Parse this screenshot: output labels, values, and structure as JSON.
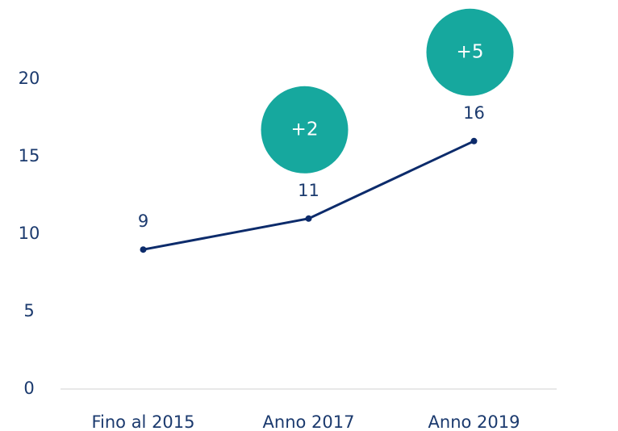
{
  "chart_data": {
    "type": "line",
    "categories": [
      "Fino al 2015",
      "Anno 2017",
      "Anno 2019"
    ],
    "values": [
      9,
      11,
      16
    ],
    "color": "#0c2b6b",
    "ylim": [
      0,
      20
    ],
    "yticks": [
      0,
      5,
      10,
      15,
      20
    ],
    "grid": false,
    "annotations": [
      {
        "text": "+2",
        "category": 1,
        "color": "#16a89e"
      },
      {
        "text": "+5",
        "category": 2,
        "color": "#16a89e"
      }
    ]
  }
}
